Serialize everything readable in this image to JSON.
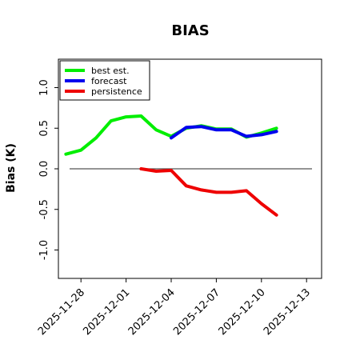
{
  "chart_data": {
    "type": "line",
    "title": "BIAS",
    "xlabel": "",
    "ylabel": "Bias (K)",
    "ylim": [
      -1.35,
      1.35
    ],
    "yticks": [
      -1.0,
      -0.5,
      0.0,
      0.5,
      1.0
    ],
    "ytick_labels": [
      "-1.0",
      "-0.5",
      "0.0",
      "0.5",
      "1.0"
    ],
    "xlim": [
      "2025-11-26T12:00",
      "2025-12-14T00:00"
    ],
    "xticks": [
      "2025-11-28",
      "2025-12-01",
      "2025-12-04",
      "2025-12-07",
      "2025-12-10",
      "2025-12-13"
    ],
    "xtick_labels": [
      "2025-11-28",
      "2025-12-01",
      "2025-12-04",
      "2025-12-07",
      "2025-12-10",
      "2025-12-13"
    ],
    "highlighted_xtick": "2025-12-04",
    "highlight_color": "#2e8b2e",
    "zero_line": true,
    "grid": false,
    "legend_position": "upper-left",
    "series": [
      {
        "name": "best est.",
        "color": "#00ee00",
        "x": [
          "2025-11-27T00:00",
          "2025-11-28T00:00",
          "2025-11-29T00:00",
          "2025-11-30T00:00",
          "2025-12-01T00:00",
          "2025-12-02T00:00",
          "2025-12-03T00:00",
          "2025-12-04T00:00",
          "2025-12-05T00:00",
          "2025-12-06T00:00",
          "2025-12-07T00:00",
          "2025-12-08T00:00",
          "2025-12-09T00:00",
          "2025-12-10T00:00",
          "2025-12-11T00:00"
        ],
        "y": [
          0.18,
          0.23,
          0.38,
          0.59,
          0.64,
          0.65,
          0.48,
          0.4,
          0.5,
          0.53,
          0.49,
          0.49,
          0.39,
          0.44,
          0.5
        ]
      },
      {
        "name": "forecast",
        "color": "#0000ee",
        "x": [
          "2025-12-04T00:00",
          "2025-12-05T00:00",
          "2025-12-06T00:00",
          "2025-12-07T00:00",
          "2025-12-08T00:00",
          "2025-12-09T00:00",
          "2025-12-10T00:00",
          "2025-12-11T00:00"
        ],
        "y": [
          0.38,
          0.51,
          0.52,
          0.48,
          0.48,
          0.4,
          0.42,
          0.46
        ]
      },
      {
        "name": "persistence",
        "color": "#ee0000",
        "x": [
          "2025-12-02T00:00",
          "2025-12-03T00:00",
          "2025-12-04T00:00",
          "2025-12-05T00:00",
          "2025-12-06T00:00",
          "2025-12-07T00:00",
          "2025-12-08T00:00",
          "2025-12-09T00:00",
          "2025-12-10T00:00",
          "2025-12-11T00:00"
        ],
        "y": [
          0.0,
          -0.03,
          -0.02,
          -0.21,
          -0.26,
          -0.29,
          -0.29,
          -0.27,
          -0.43,
          -0.57
        ]
      }
    ]
  }
}
